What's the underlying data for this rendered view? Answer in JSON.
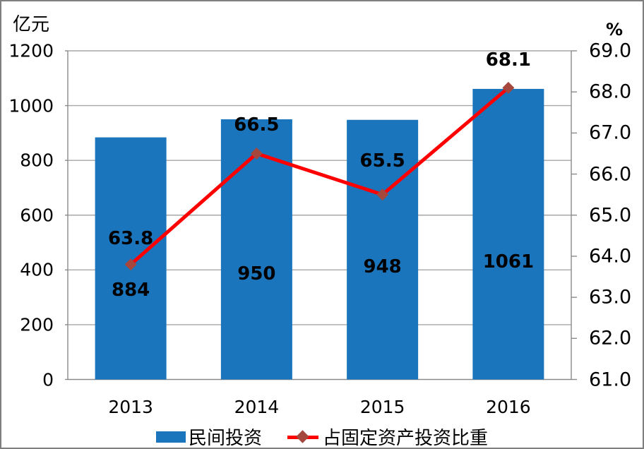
{
  "chart_data": {
    "type": "bar+line combo",
    "categories": [
      "2013",
      "2014",
      "2015",
      "2016"
    ],
    "series": [
      {
        "name": "民间投资",
        "type": "bar",
        "axis": "left",
        "values": [
          884,
          950,
          948,
          1061
        ],
        "labels": [
          "884",
          "950",
          "948",
          "1061"
        ],
        "color": "#1b75bc"
      },
      {
        "name": "占固定资产投资比重",
        "type": "line",
        "axis": "right",
        "values": [
          63.8,
          66.5,
          65.5,
          68.1
        ],
        "labels": [
          "63.8",
          "66.5",
          "65.5",
          "68.1"
        ],
        "line_color": "#fe0000",
        "marker": "diamond",
        "marker_color": "#a6473d"
      }
    ],
    "left_axis": {
      "title": "亿元",
      "min": 0,
      "max": 1200,
      "step": 200,
      "tick_labels": [
        "1200",
        "1000",
        "800",
        "600",
        "400",
        "200",
        "0"
      ]
    },
    "right_axis": {
      "title": "%",
      "min": 61.0,
      "max": 69.0,
      "step": 1.0,
      "tick_labels": [
        "69.0",
        "68.0",
        "67.0",
        "66.0",
        "65.0",
        "64.0",
        "63.0",
        "62.0",
        "61.0"
      ]
    },
    "grid": "horizontal gridlines at left-axis major intervals",
    "legend": {
      "position": "bottom",
      "items": [
        "民间投资",
        "占固定资产投资比重"
      ]
    },
    "colors": {
      "bar": "#1b75bc",
      "line": "#fe0000",
      "marker": "#a6473d",
      "gridline": "#a6a6a6",
      "axis_line": "#8a8a8a",
      "frame_border": "#7f7f7f",
      "text": "#000000"
    }
  }
}
